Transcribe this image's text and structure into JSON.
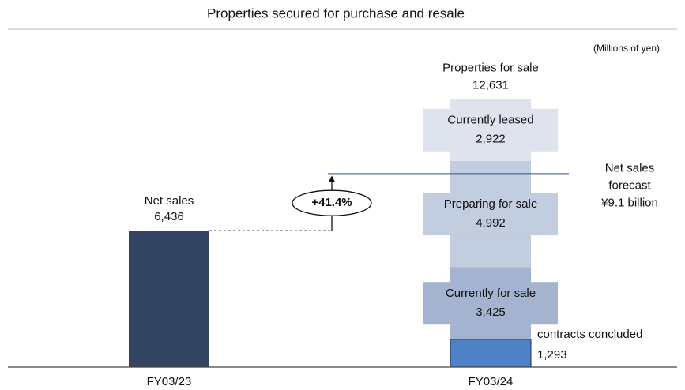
{
  "chart_data": {
    "type": "bar",
    "stacked": true,
    "title": "Properties secured for purchase and resale",
    "unit_label": "(Millions of yen)",
    "categories": [
      "FY03/23",
      "FY03/24"
    ],
    "series": [
      {
        "name": "Net sales",
        "color": "#344563",
        "values": [
          6436,
          null
        ],
        "value_labels": [
          "6,436",
          null
        ]
      },
      {
        "name": "contracts concluded",
        "color": "#4f81c7",
        "values": [
          null,
          1293
        ],
        "value_labels": [
          null,
          "1,293"
        ]
      },
      {
        "name": "Currently for sale",
        "color": "#a4b3cf",
        "values": [
          null,
          3425
        ],
        "value_labels": [
          null,
          "3,425"
        ]
      },
      {
        "name": "Preparing for sale",
        "color": "#c3cde0",
        "values": [
          null,
          4992
        ],
        "value_labels": [
          null,
          "4,992"
        ]
      },
      {
        "name": "Currently leased",
        "color": "#dee3ee",
        "values": [
          null,
          2922
        ],
        "value_labels": [
          null,
          "2,922"
        ]
      }
    ],
    "total": {
      "name": "Properties for sale",
      "values": [
        null,
        12631
      ],
      "value_labels": [
        null,
        "12,631"
      ]
    },
    "forecast": {
      "lines": [
        "Net sales",
        "forecast",
        "¥9.1 billion"
      ],
      "value": 9100,
      "color": "#2f4f8f"
    },
    "growth_label": "+41.4%",
    "ylim": [
      0,
      17300
    ]
  }
}
